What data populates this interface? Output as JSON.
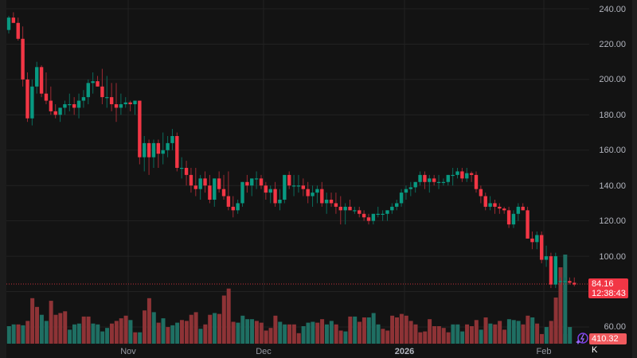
{
  "chart_data": {
    "type": "candlestick",
    "title": "",
    "xlabel": "",
    "ylabel": "",
    "ylim": [
      60,
      240
    ],
    "grid": true,
    "price_axis": {
      "ticks": [
        "240.00",
        "220.00",
        "200.00",
        "180.00",
        "160.00",
        "140.00",
        "120.00",
        "100.00",
        "60.00"
      ],
      "tick_values": [
        240,
        220,
        200,
        180,
        160,
        140,
        120,
        100,
        60
      ]
    },
    "time_axis": {
      "labels": [
        {
          "text": "Nov",
          "x": 161,
          "bold": false
        },
        {
          "text": "Dec",
          "x": 331,
          "bold": false
        },
        {
          "text": "2026",
          "x": 508,
          "bold": true
        },
        {
          "text": "Feb",
          "x": 683,
          "bold": false
        }
      ]
    },
    "last_price": {
      "value": "84.16",
      "countdown": "12:38:43",
      "color": "#f23645"
    },
    "volume_label": {
      "value": "410.32 K",
      "color": "#f05a5e"
    },
    "colors": {
      "up": "#089981",
      "down": "#f23645",
      "up_volume": "#1f6f63",
      "down_volume": "#8e3336",
      "grid": "#222222",
      "background": "#131313"
    },
    "candles": [
      [
        228,
        236,
        226,
        235
      ],
      [
        235,
        238,
        232,
        232
      ],
      [
        232,
        235,
        222,
        223
      ],
      [
        223,
        230,
        196,
        200
      ],
      [
        200,
        204,
        176,
        178
      ],
      [
        178,
        200,
        174,
        196
      ],
      [
        196,
        210,
        192,
        207
      ],
      [
        207,
        208,
        190,
        192
      ],
      [
        192,
        204,
        186,
        188
      ],
      [
        188,
        196,
        180,
        182
      ],
      [
        182,
        186,
        178,
        180
      ],
      [
        180,
        184,
        176,
        184
      ],
      [
        184,
        188,
        180,
        186
      ],
      [
        186,
        192,
        182,
        186
      ],
      [
        186,
        190,
        180,
        184
      ],
      [
        184,
        192,
        178,
        188
      ],
      [
        188,
        194,
        184,
        190
      ],
      [
        190,
        200,
        186,
        198
      ],
      [
        198,
        204,
        192,
        199
      ],
      [
        199,
        202,
        196,
        196
      ],
      [
        196,
        206,
        186,
        190
      ],
      [
        190,
        202,
        184,
        190
      ],
      [
        190,
        198,
        182,
        186
      ],
      [
        186,
        198,
        176,
        184
      ],
      [
        184,
        192,
        180,
        186
      ],
      [
        186,
        190,
        184,
        187
      ],
      [
        187,
        188,
        182,
        186
      ],
      [
        186,
        188,
        180,
        188
      ],
      [
        188,
        188,
        152,
        156
      ],
      [
        156,
        168,
        148,
        164
      ],
      [
        164,
        166,
        146,
        156
      ],
      [
        156,
        166,
        150,
        164
      ],
      [
        164,
        166,
        150,
        158
      ],
      [
        158,
        170,
        152,
        160
      ],
      [
        160,
        168,
        156,
        164
      ],
      [
        164,
        172,
        160,
        168
      ],
      [
        168,
        170,
        148,
        150
      ],
      [
        150,
        156,
        144,
        150
      ],
      [
        150,
        154,
        140,
        146
      ],
      [
        146,
        150,
        136,
        140
      ],
      [
        140,
        150,
        134,
        138
      ],
      [
        138,
        146,
        132,
        144
      ],
      [
        144,
        148,
        136,
        140
      ],
      [
        140,
        146,
        130,
        132
      ],
      [
        132,
        144,
        128,
        144
      ],
      [
        144,
        148,
        136,
        138
      ],
      [
        138,
        146,
        132,
        134
      ],
      [
        134,
        148,
        126,
        128
      ],
      [
        128,
        134,
        122,
        126
      ],
      [
        126,
        132,
        124,
        130
      ],
      [
        130,
        142,
        128,
        142
      ],
      [
        142,
        146,
        136,
        140
      ],
      [
        140,
        144,
        134,
        144
      ],
      [
        144,
        148,
        138,
        144
      ],
      [
        144,
        146,
        138,
        140
      ],
      [
        140,
        142,
        132,
        136
      ],
      [
        136,
        140,
        130,
        138
      ],
      [
        138,
        142,
        128,
        130
      ],
      [
        130,
        138,
        126,
        132
      ],
      [
        132,
        146,
        130,
        146
      ],
      [
        146,
        148,
        138,
        140
      ],
      [
        140,
        146,
        134,
        140
      ],
      [
        140,
        146,
        136,
        140
      ],
      [
        140,
        144,
        134,
        138
      ],
      [
        138,
        142,
        130,
        134
      ],
      [
        134,
        140,
        128,
        136
      ],
      [
        136,
        140,
        130,
        138
      ],
      [
        138,
        142,
        128,
        130
      ],
      [
        130,
        136,
        124,
        132
      ],
      [
        132,
        136,
        128,
        130
      ],
      [
        130,
        136,
        124,
        128
      ],
      [
        128,
        134,
        118,
        126
      ],
      [
        126,
        130,
        118,
        128
      ],
      [
        128,
        132,
        126,
        126
      ],
      [
        126,
        128,
        124,
        126
      ],
      [
        126,
        128,
        122,
        124
      ],
      [
        124,
        126,
        120,
        122
      ],
      [
        122,
        124,
        118,
        120
      ],
      [
        120,
        124,
        118,
        124
      ],
      [
        124,
        128,
        122,
        124
      ],
      [
        124,
        126,
        120,
        124
      ],
      [
        124,
        126,
        120,
        126
      ],
      [
        126,
        130,
        124,
        128
      ],
      [
        128,
        132,
        126,
        130
      ],
      [
        130,
        138,
        128,
        136
      ],
      [
        136,
        140,
        132,
        138
      ],
      [
        138,
        142,
        134,
        139
      ],
      [
        139,
        142,
        136,
        142
      ],
      [
        142,
        148,
        140,
        146
      ],
      [
        146,
        148,
        138,
        142
      ],
      [
        142,
        146,
        136,
        144
      ],
      [
        144,
        146,
        140,
        142
      ],
      [
        142,
        146,
        138,
        142
      ],
      [
        142,
        144,
        140,
        142
      ],
      [
        142,
        146,
        140,
        146
      ],
      [
        146,
        150,
        140,
        146
      ],
      [
        146,
        150,
        144,
        148
      ],
      [
        148,
        150,
        142,
        144
      ],
      [
        144,
        150,
        142,
        147
      ],
      [
        147,
        148,
        142,
        146
      ],
      [
        146,
        148,
        136,
        138
      ],
      [
        138,
        140,
        130,
        134
      ],
      [
        134,
        136,
        126,
        128
      ],
      [
        128,
        134,
        126,
        130
      ],
      [
        130,
        132,
        124,
        128
      ],
      [
        128,
        130,
        124,
        127
      ],
      [
        127,
        128,
        124,
        126
      ],
      [
        126,
        128,
        116,
        118
      ],
      [
        118,
        126,
        116,
        124
      ],
      [
        124,
        130,
        120,
        128
      ],
      [
        128,
        130,
        126,
        126
      ],
      [
        126,
        128,
        110,
        110
      ],
      [
        110,
        114,
        104,
        108
      ],
      [
        108,
        114,
        104,
        112
      ],
      [
        112,
        114,
        96,
        98
      ],
      [
        98,
        106,
        94,
        100
      ],
      [
        100,
        102,
        82,
        84
      ],
      [
        84,
        102,
        82,
        100
      ],
      [
        86,
        88,
        84,
        86
      ],
      [
        86,
        88,
        84,
        86
      ],
      [
        86,
        88,
        84,
        85
      ],
      [
        85,
        88,
        83,
        84
      ]
    ],
    "volumes": [
      [
        20,
        1
      ],
      [
        22,
        1
      ],
      [
        22,
        0
      ],
      [
        21,
        1
      ],
      [
        26,
        0
      ],
      [
        52,
        0
      ],
      [
        42,
        0
      ],
      [
        33,
        1
      ],
      [
        26,
        1
      ],
      [
        49,
        0
      ],
      [
        33,
        0
      ],
      [
        35,
        0
      ],
      [
        37,
        0
      ],
      [
        16,
        1
      ],
      [
        22,
        1
      ],
      [
        23,
        1
      ],
      [
        31,
        0
      ],
      [
        31,
        0
      ],
      [
        23,
        1
      ],
      [
        22,
        1
      ],
      [
        14,
        1
      ],
      [
        18,
        1
      ],
      [
        23,
        0
      ],
      [
        26,
        0
      ],
      [
        29,
        0
      ],
      [
        32,
        0
      ],
      [
        27,
        1
      ],
      [
        13,
        0
      ],
      [
        13,
        1
      ],
      [
        38,
        0
      ],
      [
        52,
        0
      ],
      [
        36,
        1
      ],
      [
        24,
        0
      ],
      [
        29,
        1
      ],
      [
        19,
        0
      ],
      [
        21,
        1
      ],
      [
        24,
        1
      ],
      [
        27,
        0
      ],
      [
        26,
        0
      ],
      [
        33,
        0
      ],
      [
        36,
        0
      ],
      [
        17,
        1
      ],
      [
        22,
        0
      ],
      [
        33,
        0
      ],
      [
        35,
        1
      ],
      [
        34,
        0
      ],
      [
        55,
        0
      ],
      [
        63,
        0
      ],
      [
        25,
        0
      ],
      [
        24,
        1
      ],
      [
        32,
        1
      ],
      [
        28,
        1
      ],
      [
        28,
        1
      ],
      [
        26,
        0
      ],
      [
        24,
        0
      ],
      [
        15,
        0
      ],
      [
        18,
        0
      ],
      [
        32,
        0
      ],
      [
        25,
        1
      ],
      [
        22,
        1
      ],
      [
        22,
        0
      ],
      [
        22,
        0
      ],
      [
        12,
        0
      ],
      [
        20,
        1
      ],
      [
        24,
        1
      ],
      [
        25,
        1
      ],
      [
        24,
        0
      ],
      [
        28,
        0
      ],
      [
        22,
        1
      ],
      [
        26,
        1
      ],
      [
        22,
        0
      ],
      [
        15,
        0
      ],
      [
        14,
        1
      ],
      [
        31,
        0
      ],
      [
        31,
        1
      ],
      [
        25,
        0
      ],
      [
        30,
        0
      ],
      [
        30,
        1
      ],
      [
        35,
        1
      ],
      [
        22,
        1
      ],
      [
        17,
        0
      ],
      [
        15,
        0
      ],
      [
        32,
        0
      ],
      [
        30,
        0
      ],
      [
        34,
        0
      ],
      [
        32,
        0
      ],
      [
        26,
        0
      ],
      [
        22,
        0
      ],
      [
        13,
        0
      ],
      [
        14,
        0
      ],
      [
        28,
        0
      ],
      [
        20,
        0
      ],
      [
        20,
        0
      ],
      [
        18,
        0
      ],
      [
        13,
        0
      ],
      [
        22,
        1
      ],
      [
        22,
        1
      ],
      [
        14,
        1
      ],
      [
        22,
        0
      ],
      [
        20,
        0
      ],
      [
        27,
        0
      ],
      [
        16,
        1
      ],
      [
        30,
        0
      ],
      [
        23,
        1
      ],
      [
        22,
        0
      ],
      [
        26,
        0
      ],
      [
        16,
        0
      ],
      [
        28,
        1
      ],
      [
        27,
        1
      ],
      [
        26,
        1
      ],
      [
        22,
        0
      ],
      [
        32,
        0
      ],
      [
        30,
        1
      ],
      [
        23,
        0
      ],
      [
        11,
        0
      ],
      [
        19,
        1
      ],
      [
        26,
        0
      ],
      [
        28,
        0
      ],
      [
        22,
        0
      ],
      [
        11,
        0
      ],
      [
        19,
        1
      ]
    ]
  },
  "price_axis": {
    "labels": [
      "240.00",
      "220.00",
      "200.00",
      "180.00",
      "160.00",
      "140.00",
      "120.00",
      "100.00",
      "60.00"
    ]
  },
  "time_axis": {
    "nov": "Nov",
    "dec": "Dec",
    "y2026": "2026",
    "feb": "Feb"
  },
  "last_price_tag": {
    "price": "84.16",
    "countdown": "12:38:43"
  },
  "volume_tag": {
    "value": "410.32 K"
  }
}
